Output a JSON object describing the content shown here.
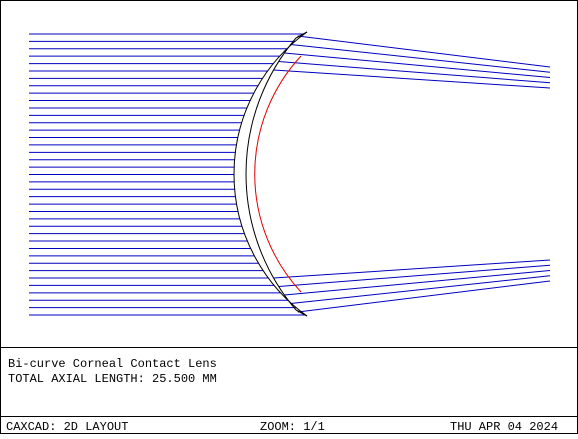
{
  "description": {
    "title": "Bi-curve Corneal Contact Lens",
    "length": "TOTAL AXIAL LENGTH: 25.500 MM"
  },
  "footer": {
    "program": "CAXCAD: 2D LAYOUT",
    "zoom": "ZOOM: 1/1",
    "date": "THU APR 04 2024"
  }
}
